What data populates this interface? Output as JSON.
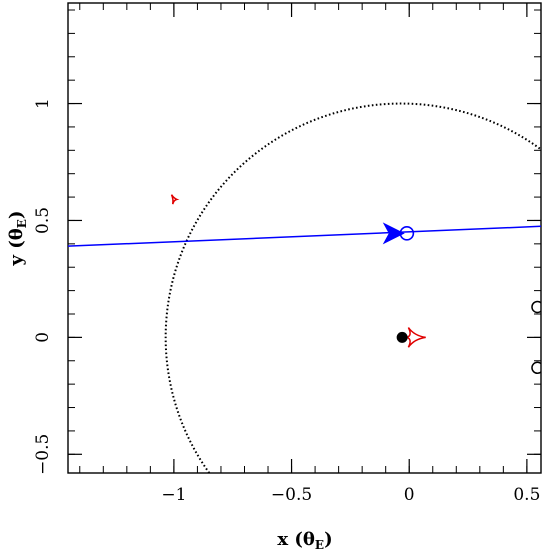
{
  "chart_data": {
    "type": "scatter",
    "xlim": [
      -1.45,
      0.56
    ],
    "ylim": [
      -0.58,
      1.43
    ],
    "x_ticks": [
      -1,
      -0.5,
      0,
      0.5
    ],
    "x_tick_labels": [
      "−1",
      "−0.5",
      "0",
      "0.5"
    ],
    "y_ticks": [
      -0.5,
      0,
      0.5,
      1
    ],
    "y_tick_labels": [
      "−0.5",
      "0",
      "0.5",
      "1"
    ],
    "x_minor_step": 0.1,
    "y_minor_step": 0.1,
    "xlabel": {
      "main": "x",
      "unit_symbol": "θ",
      "unit_sub": "E"
    },
    "ylabel": {
      "main": "y",
      "unit_symbol": "θ",
      "unit_sub": "E"
    },
    "grid": false,
    "einstein_ring": {
      "center": [
        -0.035,
        0.0
      ],
      "radius": 1.0,
      "style": "dotted",
      "color": "#000000"
    },
    "source_trajectory": {
      "x": [
        -1.45,
        0.56
      ],
      "y": [
        0.39,
        0.475
      ],
      "color": "#0000ff"
    },
    "direction_arrow": {
      "x": -0.07,
      "y": 0.445,
      "color": "#0000ff"
    },
    "source_position": {
      "x": -0.01,
      "y": 0.445,
      "color": "#0000ff"
    },
    "lens_primary": {
      "x": -0.03,
      "y": 0.0,
      "color": "#000000"
    },
    "lens_secondary": [
      {
        "x": 0.545,
        "y": 0.13
      },
      {
        "x": 0.545,
        "y": -0.13
      }
    ],
    "caustics": [
      {
        "x": 0.0,
        "y": 0.0,
        "size": 0.07,
        "color": "#e00000"
      },
      {
        "x": -1.0,
        "y": 0.59,
        "size": 0.025,
        "color": "#e00000"
      }
    ]
  }
}
